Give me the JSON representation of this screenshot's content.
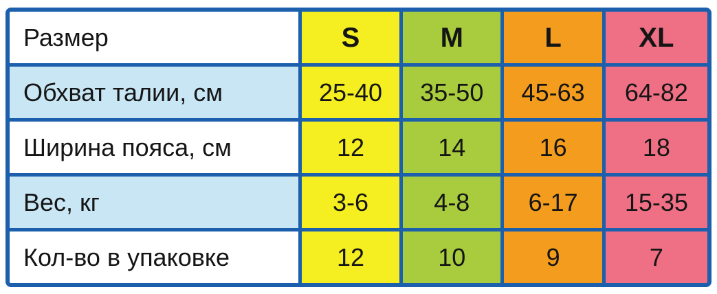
{
  "table": {
    "header": {
      "label": "Размер",
      "sizes": [
        "S",
        "M",
        "L",
        "XL"
      ]
    },
    "rows": [
      {
        "label": "Обхват талии, см",
        "values": [
          "25-40",
          "35-50",
          "45-63",
          "64-82"
        ]
      },
      {
        "label": "Ширина пояса, см",
        "values": [
          "12",
          "14",
          "16",
          "18"
        ]
      },
      {
        "label": "Вес, кг",
        "values": [
          "3-6",
          "4-8",
          "6-17",
          "15-35"
        ]
      },
      {
        "label": "Кол-во в упаковке",
        "values": [
          "12",
          "10",
          "9",
          "7"
        ]
      }
    ]
  },
  "colors": {
    "border": "#1b5fad",
    "s": "#f5ee21",
    "m": "#a8cc3d",
    "l": "#f39c1d",
    "xl": "#ef7085",
    "alt_row": "#c9e6f5",
    "cell": "#ffffff",
    "text": "#151515"
  },
  "chart_data": {
    "type": "table",
    "columns": [
      "Размер",
      "S",
      "M",
      "L",
      "XL"
    ],
    "rows": [
      [
        "Обхват талии, см",
        "25-40",
        "35-50",
        "45-63",
        "64-82"
      ],
      [
        "Ширина пояса, см",
        "12",
        "14",
        "16",
        "18"
      ],
      [
        "Вес, кг",
        "3-6",
        "4-8",
        "6-17",
        "15-35"
      ],
      [
        "Кол-во в упаковке",
        "12",
        "10",
        "9",
        "7"
      ]
    ],
    "column_colors": {
      "S": "#f5ee21",
      "M": "#a8cc3d",
      "L": "#f39c1d",
      "XL": "#ef7085"
    },
    "title": "",
    "legend_position": "none",
    "grid": true
  }
}
